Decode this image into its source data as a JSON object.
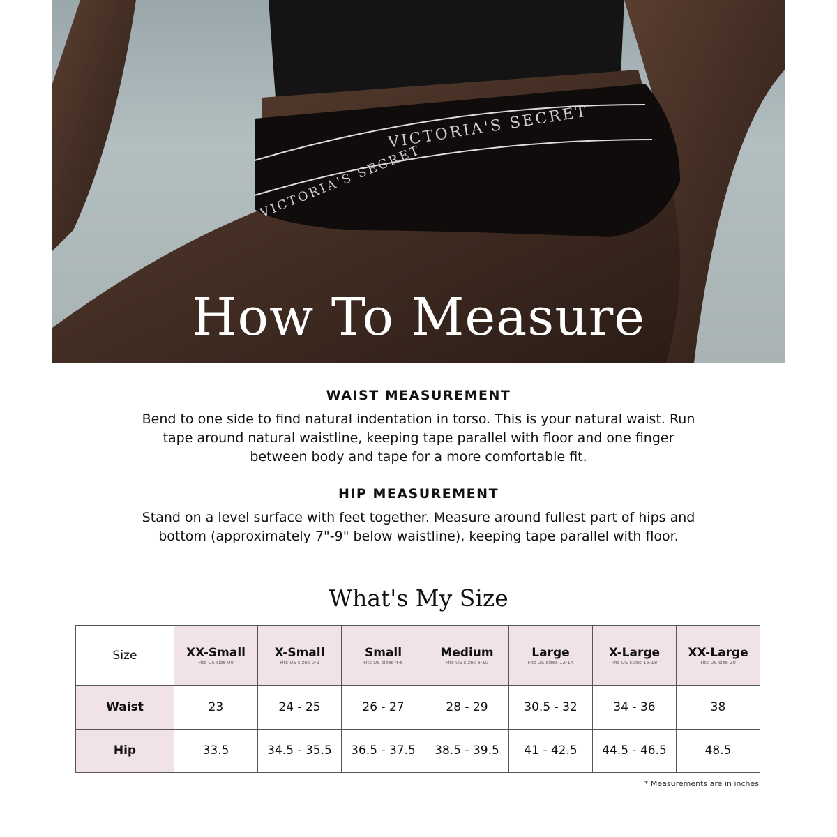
{
  "hero": {
    "title": "How To Measure",
    "waistband_text": "VICTORIA'S SECRET",
    "waistband_text_left": "VICTORIA'S SECRET"
  },
  "waist": {
    "heading": "WAIST MEASUREMENT",
    "lines": [
      "Bend to one side to find natural indentation in torso. This is your natural waist. Run",
      "tape around natural waistline, keeping tape parallel with floor and one finger",
      "between body and tape for a more comfortable fit."
    ]
  },
  "hip": {
    "heading": "HIP MEASUREMENT",
    "lines": [
      "Stand on a level surface with feet together. Measure around fullest part of hips and",
      "bottom (approximately 7\"-9\" below waistline), keeping tape parallel with floor."
    ]
  },
  "size_chart": {
    "title": "What's My Size",
    "corner": "Size",
    "sizes": [
      {
        "name": "XX-Small",
        "fits": "Fits US size 00",
        "waist": "23",
        "hip": "33.5"
      },
      {
        "name": "X-Small",
        "fits": "Fits US sizes 0-2",
        "waist": "24 - 25",
        "hip": "34.5 - 35.5"
      },
      {
        "name": "Small",
        "fits": "Fits US sizes 4-6",
        "waist": "26 - 27",
        "hip": "36.5 - 37.5"
      },
      {
        "name": "Medium",
        "fits": "Fits US sizes 8-10",
        "waist": "28 - 29",
        "hip": "38.5 - 39.5"
      },
      {
        "name": "Large",
        "fits": "Fits US sizes 12-14",
        "waist": "30.5 - 32",
        "hip": "41 - 42.5"
      },
      {
        "name": "X-Large",
        "fits": "Fits US sizes 16-18",
        "waist": "34 - 36",
        "hip": "44.5 - 46.5"
      },
      {
        "name": "XX-Large",
        "fits": "Fits US size 20",
        "waist": "38",
        "hip": "48.5"
      }
    ],
    "row_labels": {
      "waist": "Waist",
      "hip": "Hip"
    },
    "note": "* Measurements are in inches",
    "header_color": "#f1e2e5"
  }
}
